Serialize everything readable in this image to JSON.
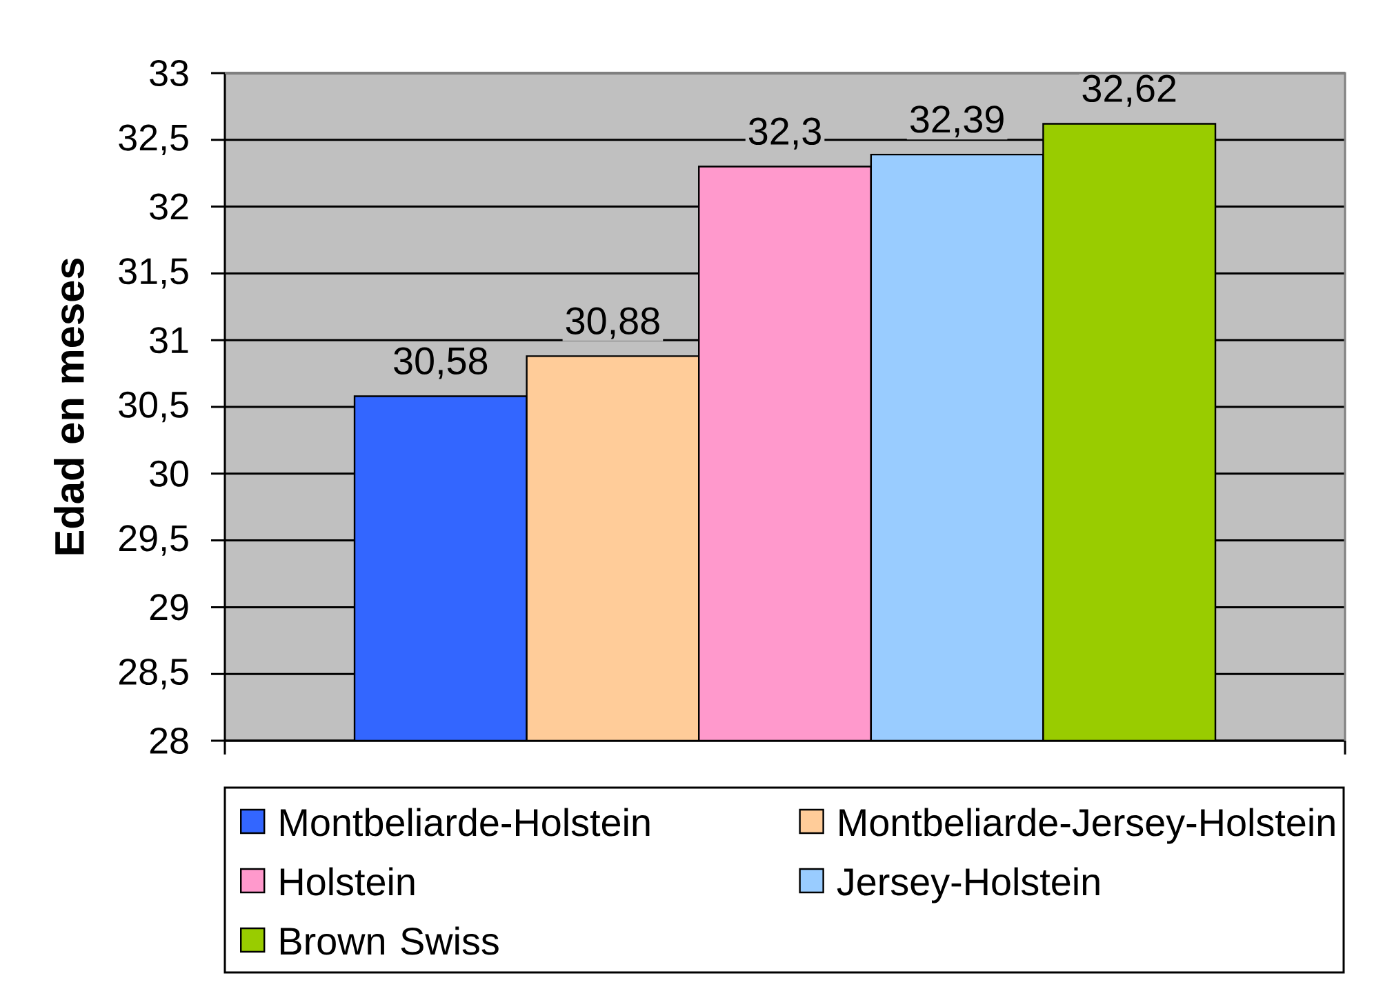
{
  "chart_data": {
    "type": "bar",
    "ylabel": "Edad en meses",
    "categories": [
      null
    ],
    "series": [
      {
        "name": "Montbeliarde-Holstein",
        "color": "#3366ff",
        "values": [
          30.58
        ],
        "value_labels": [
          "30,58"
        ]
      },
      {
        "name": "Montbeliarde-Jersey-Holstein",
        "color": "#ffcc99",
        "values": [
          30.88
        ],
        "value_labels": [
          "30,88"
        ]
      },
      {
        "name": "Holstein",
        "color": "#ff99cc",
        "values": [
          32.3
        ],
        "value_labels": [
          "32,3"
        ]
      },
      {
        "name": "Jersey-Holstein",
        "color": "#99ccff",
        "values": [
          32.39
        ],
        "value_labels": [
          "32,39"
        ]
      },
      {
        "name": "Brown Swiss",
        "color": "#99cc00",
        "values": [
          32.62
        ],
        "value_labels": [
          "32,62"
        ]
      }
    ],
    "ylim": [
      28,
      33
    ],
    "yticks": [
      28,
      {
        "value": 28.5,
        "label": "28,5"
      },
      29,
      {
        "value": 29.5,
        "label": "29,5"
      },
      30,
      {
        "value": 30.5,
        "label": "30,5"
      },
      31,
      {
        "value": 31.5,
        "label": "31,5"
      },
      32,
      {
        "value": 32.5,
        "label": "32,5"
      },
      33
    ],
    "grid": "y",
    "legend": "bottom"
  }
}
